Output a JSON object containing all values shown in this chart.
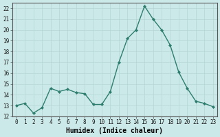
{
  "x": [
    0,
    1,
    2,
    3,
    4,
    5,
    6,
    7,
    8,
    9,
    10,
    11,
    12,
    13,
    14,
    15,
    16,
    17,
    18,
    19,
    20,
    21,
    22,
    23
  ],
  "y": [
    13.0,
    13.2,
    12.3,
    12.8,
    14.6,
    14.3,
    14.5,
    14.2,
    14.1,
    13.1,
    13.1,
    14.3,
    17.0,
    19.2,
    20.0,
    22.2,
    21.0,
    20.0,
    18.6,
    16.1,
    14.6,
    13.4,
    13.2,
    12.9
  ],
  "line_color": "#2d7d6e",
  "marker": "D",
  "marker_size": 2.0,
  "line_width": 1.0,
  "background_color": "#cce9e9",
  "grid_color": "#b8d8d8",
  "xlabel": "Humidex (Indice chaleur)",
  "xlim": [
    -0.5,
    23.5
  ],
  "ylim": [
    12,
    22.5
  ],
  "yticks": [
    12,
    13,
    14,
    15,
    16,
    17,
    18,
    19,
    20,
    21,
    22
  ],
  "xticks": [
    0,
    1,
    2,
    3,
    4,
    5,
    6,
    7,
    8,
    9,
    10,
    11,
    12,
    13,
    14,
    15,
    16,
    17,
    18,
    19,
    20,
    21,
    22,
    23
  ],
  "tick_fontsize": 5.5,
  "xlabel_fontsize": 7.0
}
